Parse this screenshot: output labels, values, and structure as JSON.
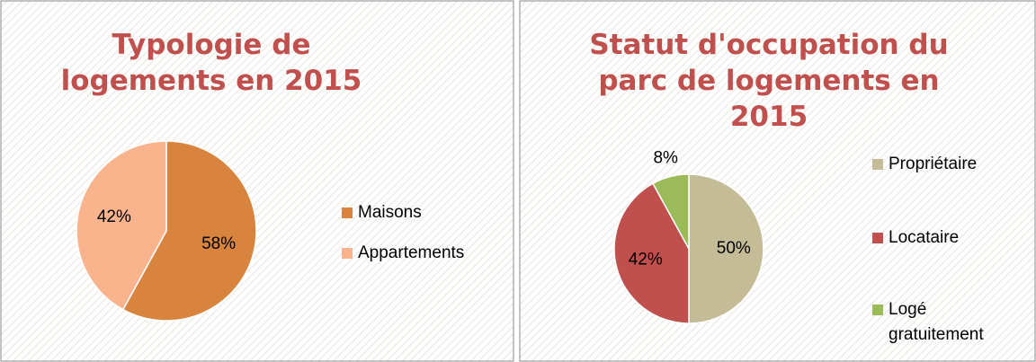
{
  "chart_data": [
    {
      "type": "pie",
      "title": "Typologie de logements en 2015",
      "categories": [
        "Maisons",
        "Appartements"
      ],
      "values": [
        58,
        42
      ],
      "value_labels": [
        "58%",
        "42%"
      ],
      "colors": [
        "#d9843e",
        "#f9b48e"
      ]
    },
    {
      "type": "pie",
      "title": "Statut d'occupation du parc de logements en 2015",
      "categories": [
        "Propriétaire",
        "Locataire",
        "Logé gratuitement"
      ],
      "values": [
        50,
        42,
        8
      ],
      "value_labels": [
        "50%",
        "42%",
        "8%"
      ],
      "colors": [
        "#c4bc96",
        "#c0504d",
        "#9bbb59"
      ]
    }
  ]
}
